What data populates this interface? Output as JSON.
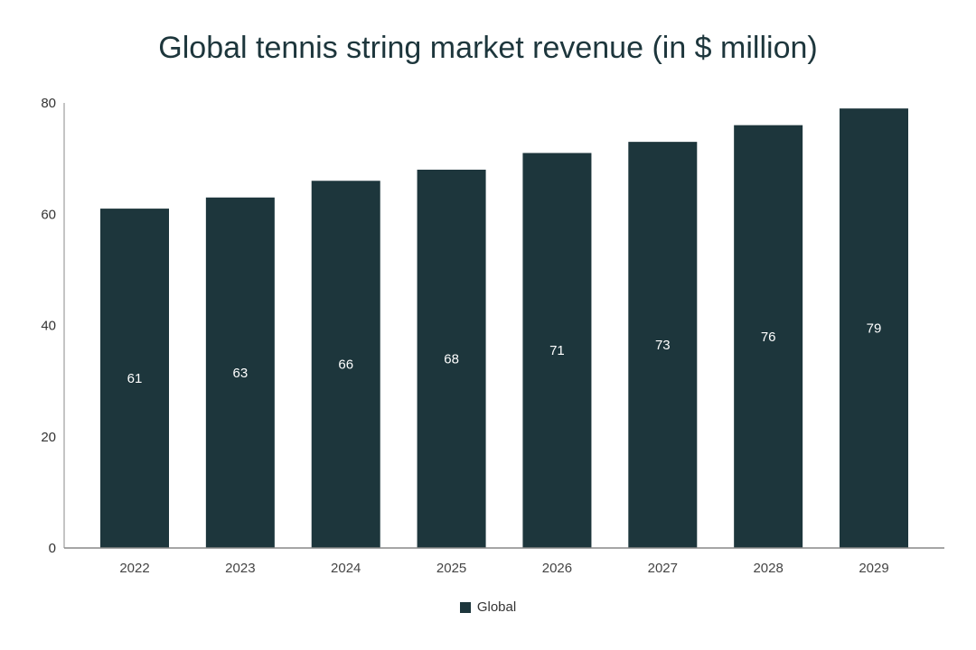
{
  "chart_data": {
    "type": "bar",
    "title": "Global tennis string market revenue (in $ million)",
    "categories": [
      "2022",
      "2023",
      "2024",
      "2025",
      "2026",
      "2027",
      "2028",
      "2029"
    ],
    "series": [
      {
        "name": "Global",
        "values": [
          61,
          63,
          66,
          68,
          71,
          73,
          76,
          79
        ],
        "color": "#1d363c"
      }
    ],
    "xlabel": "",
    "ylabel": "",
    "ylim": [
      0,
      80
    ],
    "yticks": [
      0,
      20,
      40,
      60,
      80
    ],
    "grid": false,
    "legend": "bottom",
    "data_labels": true
  }
}
